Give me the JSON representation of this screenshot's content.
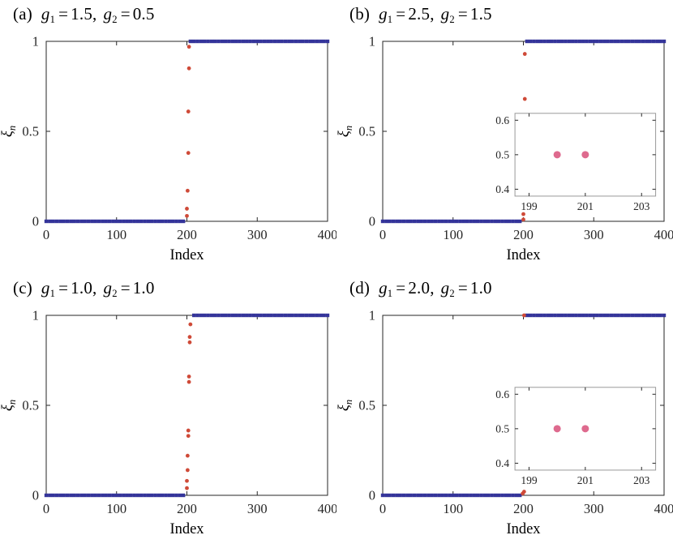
{
  "figure": {
    "axis_color": "#262626",
    "inset_border_color": "#999999",
    "background": "#ffffff",
    "square_marker_color": "#34349a",
    "transition_marker_color": "#cf4a38",
    "inset_marker_color": "#de6a8e"
  },
  "chart_data": [
    {
      "type": "scatter",
      "panel": "a",
      "label": "(a)",
      "title_plain": "g1 = 1.5, g2 = 0.5",
      "title_segments": [
        {
          "k": "var",
          "t": "g"
        },
        {
          "k": "sub",
          "t": "1"
        },
        {
          "k": "op",
          "t": "="
        },
        {
          "k": "num",
          "t": "1.5"
        },
        {
          "k": "comma",
          "t": ","
        },
        {
          "k": "var",
          "t": "g"
        },
        {
          "k": "sub",
          "t": "2"
        },
        {
          "k": "op",
          "t": "="
        },
        {
          "k": "num",
          "t": "0.5"
        }
      ],
      "xlabel": "Index",
      "ylabel": {
        "base": "ξ",
        "sub": "n"
      },
      "xlim": [
        0,
        400
      ],
      "ylim": [
        0,
        1
      ],
      "xticks": [
        0,
        100,
        200,
        300,
        400
      ],
      "yticks": [
        0,
        0.5,
        1
      ],
      "series": [
        {
          "name": "lower-band",
          "marker": "square",
          "color": "#34349a",
          "x_from": 0,
          "x_to": 195,
          "x_step": 5,
          "y_const": 0
        },
        {
          "name": "upper-band",
          "marker": "square",
          "color": "#34349a",
          "x_from": 205,
          "x_to": 400,
          "x_step": 5,
          "y_const": 1
        },
        {
          "name": "edge-transition",
          "marker": "circle",
          "color": "#cf4a38",
          "points": [
            [
              200,
              0.03
            ],
            [
              200,
              0.07
            ],
            [
              201,
              0.17
            ],
            [
              202,
              0.38
            ],
            [
              202,
              0.61
            ],
            [
              203,
              0.85
            ],
            [
              203,
              0.97
            ]
          ]
        }
      ],
      "inset": null
    },
    {
      "type": "scatter",
      "panel": "b",
      "label": "(b)",
      "title_plain": "g1 = 2.5, g2 = 1.5",
      "title_segments": [
        {
          "k": "var",
          "t": "g"
        },
        {
          "k": "sub",
          "t": "1"
        },
        {
          "k": "op",
          "t": "="
        },
        {
          "k": "num",
          "t": "2.5"
        },
        {
          "k": "comma",
          "t": ","
        },
        {
          "k": "var",
          "t": "g"
        },
        {
          "k": "sub",
          "t": "2"
        },
        {
          "k": "op",
          "t": "="
        },
        {
          "k": "num",
          "t": "1.5"
        }
      ],
      "xlabel": "Index",
      "ylabel": {
        "base": "ξ",
        "sub": "n"
      },
      "xlim": [
        0,
        400
      ],
      "ylim": [
        0,
        1
      ],
      "xticks": [
        0,
        100,
        200,
        300,
        400
      ],
      "yticks": [
        0,
        0.5,
        1
      ],
      "series": [
        {
          "name": "lower-band",
          "marker": "square",
          "color": "#34349a",
          "x_from": 0,
          "x_to": 195,
          "x_step": 5,
          "y_const": 0
        },
        {
          "name": "upper-band",
          "marker": "square",
          "color": "#34349a",
          "x_from": 205,
          "x_to": 400,
          "x_step": 5,
          "y_const": 1
        },
        {
          "name": "edge-transition",
          "marker": "circle",
          "color": "#cf4a38",
          "points": [
            [
              200,
              0.01
            ],
            [
              200,
              0.04
            ],
            [
              201,
              0.31
            ],
            [
              201,
              0.37
            ],
            [
              200,
              0.5
            ],
            [
              201,
              0.5
            ],
            [
              202,
              0.68
            ],
            [
              202,
              0.93
            ]
          ]
        }
      ],
      "inset": {
        "xlim": [
          198.5,
          203.5
        ],
        "ylim": [
          0.38,
          0.62
        ],
        "xticks": [
          199,
          201,
          203
        ],
        "yticks": [
          0.4,
          0.5,
          0.6
        ],
        "points": [
          [
            200,
            0.5
          ],
          [
            201,
            0.5
          ]
        ],
        "color": "#de6a8e"
      }
    },
    {
      "type": "scatter",
      "panel": "c",
      "label": "(c)",
      "title_plain": "g1 = 1.0, g2 = 1.0",
      "title_segments": [
        {
          "k": "var",
          "t": "g"
        },
        {
          "k": "sub",
          "t": "1"
        },
        {
          "k": "op",
          "t": "="
        },
        {
          "k": "num",
          "t": "1.0"
        },
        {
          "k": "comma",
          "t": ","
        },
        {
          "k": "var",
          "t": "g"
        },
        {
          "k": "sub",
          "t": "2"
        },
        {
          "k": "op",
          "t": "="
        },
        {
          "k": "num",
          "t": "1.0"
        }
      ],
      "xlabel": "Index",
      "ylabel": {
        "base": "ξ",
        "sub": "n"
      },
      "xlim": [
        0,
        400
      ],
      "ylim": [
        0,
        1
      ],
      "xticks": [
        0,
        100,
        200,
        300,
        400
      ],
      "yticks": [
        0,
        0.5,
        1
      ],
      "series": [
        {
          "name": "lower-band",
          "marker": "square",
          "color": "#34349a",
          "x_from": 0,
          "x_to": 195,
          "x_step": 5,
          "y_const": 0
        },
        {
          "name": "upper-band",
          "marker": "square",
          "color": "#34349a",
          "x_from": 210,
          "x_to": 400,
          "x_step": 5,
          "y_const": 1
        },
        {
          "name": "edge-transition",
          "marker": "circle",
          "color": "#cf4a38",
          "points": [
            [
              200,
              0.04
            ],
            [
              200,
              0.08
            ],
            [
              201,
              0.14
            ],
            [
              201,
              0.22
            ],
            [
              202,
              0.33
            ],
            [
              202,
              0.36
            ],
            [
              203,
              0.63
            ],
            [
              203,
              0.66
            ],
            [
              204,
              0.85
            ],
            [
              204,
              0.88
            ],
            [
              205,
              0.95
            ]
          ]
        }
      ],
      "inset": null
    },
    {
      "type": "scatter",
      "panel": "d",
      "label": "(d)",
      "title_plain": "g1 = 2.0, g2 = 1.0",
      "title_segments": [
        {
          "k": "var",
          "t": "g"
        },
        {
          "k": "sub",
          "t": "1"
        },
        {
          "k": "op",
          "t": "="
        },
        {
          "k": "num",
          "t": "2.0"
        },
        {
          "k": "comma",
          "t": ","
        },
        {
          "k": "var",
          "t": "g"
        },
        {
          "k": "sub",
          "t": "2"
        },
        {
          "k": "op",
          "t": "="
        },
        {
          "k": "num",
          "t": "1.0"
        }
      ],
      "xlabel": "Index",
      "ylabel": {
        "base": "ξ",
        "sub": "n"
      },
      "xlim": [
        0,
        400
      ],
      "ylim": [
        0,
        1
      ],
      "xticks": [
        0,
        100,
        200,
        300,
        400
      ],
      "yticks": [
        0,
        0.5,
        1
      ],
      "series": [
        {
          "name": "lower-band",
          "marker": "square",
          "color": "#34349a",
          "x_from": 0,
          "x_to": 195,
          "x_step": 5,
          "y_const": 0
        },
        {
          "name": "upper-band",
          "marker": "square",
          "color": "#34349a",
          "x_from": 205,
          "x_to": 400,
          "x_step": 5,
          "y_const": 1
        },
        {
          "name": "edge-transition",
          "marker": "circle",
          "color": "#cf4a38",
          "points": [
            [
              199,
              0.01
            ],
            [
              201,
              0.02
            ],
            [
              200,
              0.5
            ],
            [
              201,
              0.5
            ],
            [
              201,
              1.0
            ]
          ]
        }
      ],
      "inset": {
        "xlim": [
          198.5,
          203.5
        ],
        "ylim": [
          0.38,
          0.62
        ],
        "xticks": [
          199,
          201,
          203
        ],
        "yticks": [
          0.4,
          0.5,
          0.6
        ],
        "points": [
          [
            200,
            0.5
          ],
          [
            201,
            0.5
          ]
        ],
        "color": "#de6a8e"
      }
    }
  ]
}
